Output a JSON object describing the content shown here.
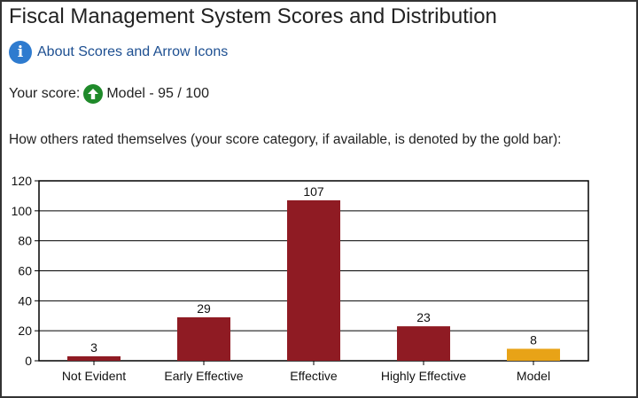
{
  "header": {
    "title": "Fiscal Management System Scores and Distribution"
  },
  "about": {
    "icon": "info-icon",
    "link_label": "About Scores and Arrow Icons"
  },
  "score": {
    "label": "Your score:",
    "arrow_icon": "up-arrow-icon",
    "value": "Model - 95 / 100"
  },
  "description": "How others rated themselves (your score category, if available, is denoted by the gold bar):",
  "chart_data": {
    "type": "bar",
    "categories": [
      "Not Evident",
      "Early Effective",
      "Effective",
      "Highly Effective",
      "Model"
    ],
    "values": [
      3,
      29,
      107,
      23,
      8
    ],
    "highlight_index": 4,
    "colors": {
      "bar": "#8f1b23",
      "highlight": "#e8a317"
    },
    "ylim": [
      0,
      120
    ],
    "yticks": [
      0,
      20,
      40,
      60,
      80,
      100,
      120
    ],
    "grid": true,
    "title": "",
    "xlabel": "",
    "ylabel": ""
  }
}
